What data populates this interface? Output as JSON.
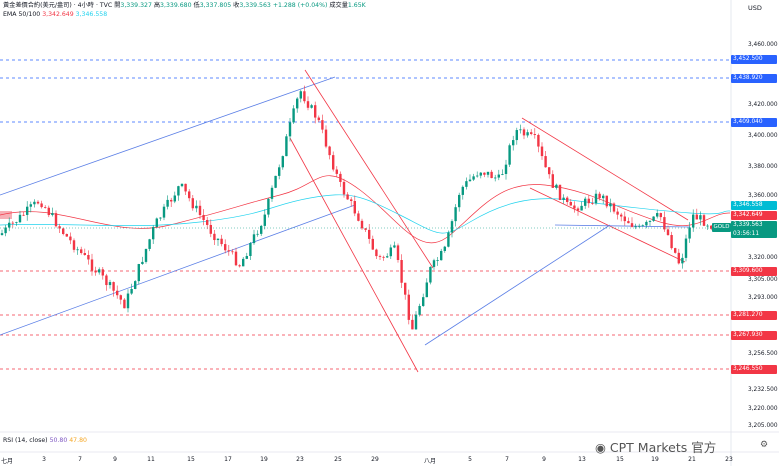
{
  "legend": {
    "symbol": "黃金差價合約(美元/盎司) · 4小時 · TVC",
    "ohlc": [
      {
        "label": "開",
        "value": "3,339.327"
      },
      {
        "label": "高",
        "value": "3,339.680"
      },
      {
        "label": "低",
        "value": "3,337.805"
      },
      {
        "label": "收",
        "value": "3,339.563"
      }
    ],
    "change": "+1.288 (+0.04%)",
    "volume_label": "成交量",
    "volume_value": "1.65K",
    "ema_label": "EMA 50/100",
    "ema_values": [
      "3,342.649",
      "3,346.558"
    ],
    "rsi_label": "RSI (14, close)",
    "rsi_values": [
      "50.80",
      "47.80"
    ]
  },
  "price_axis": {
    "currency": "USD",
    "ticks": [
      "3,460.000",
      "3,420.000",
      "3,400.000",
      "3,380.000",
      "3,360.000",
      "3,320.000",
      "3,305.000",
      "3,293.000",
      "3,256.500",
      "3,232.500",
      "3,220.000",
      "3,205.000"
    ]
  },
  "price_tags": {
    "blue": [
      "3,452.500",
      "3,438.920",
      "3,409.040"
    ],
    "ema_slow": "3,346.558",
    "ema_fast": "3,342.649",
    "current_price": "3,339.563",
    "countdown": "03:56:11",
    "red": [
      "3,309.600",
      "3,281.270",
      "3,267.930",
      "3,246.550"
    ]
  },
  "gold_tag": "GOLD",
  "time_axis": [
    "七月",
    "3",
    "7",
    "9",
    "11",
    "15",
    "17",
    "19",
    "23",
    "25",
    "29",
    "八月",
    "5",
    "7",
    "9",
    "13",
    "15",
    "19",
    "21",
    "23"
  ],
  "watermark": "CPT Markets 官方",
  "colors": {
    "bull": "#089981",
    "bear": "#f23645",
    "channel_blue": "#5b7fe6",
    "channel_red": "#f23645",
    "ema_fast": "#f23645",
    "ema_slow": "#22d3ee"
  },
  "icons": {
    "watermark": "weibo-icon",
    "settings": "gear-icon"
  }
}
